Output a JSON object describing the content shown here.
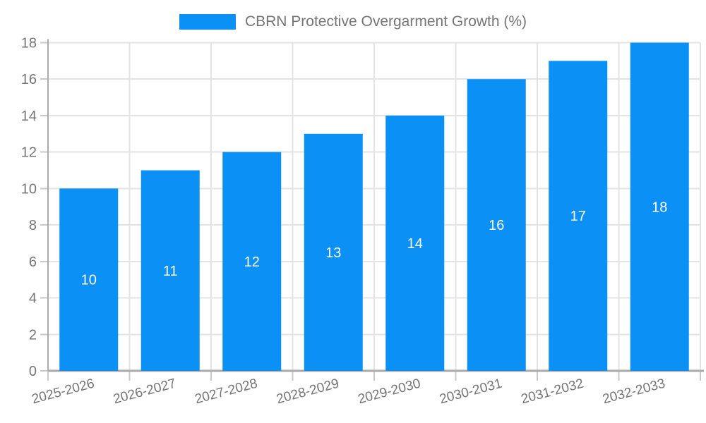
{
  "legend": {
    "label": "CBRN Protective Overgarment Growth (%)"
  },
  "chart_data": {
    "type": "bar",
    "title": "CBRN Protective Overgarment Growth (%)",
    "categories": [
      "2025-2026",
      "2026-2027",
      "2027-2028",
      "2028-2029",
      "2029-2030",
      "2030-2031",
      "2031-2032",
      "2032-2033"
    ],
    "values": [
      10,
      11,
      12,
      13,
      14,
      16,
      17,
      18
    ],
    "xlabel": "",
    "ylabel": "",
    "ylim": [
      0,
      18
    ],
    "ytick_step": 2,
    "ytick_labels": [
      "0",
      "2",
      "4",
      "6",
      "8",
      "10",
      "12",
      "14",
      "16",
      "18"
    ],
    "grid": "on",
    "legend_position": "top-center",
    "bar_color": "#0b90f5",
    "bar_label_color": "#ffffff",
    "gridline_color": "#e3e3e3",
    "axis_line_color": "#aaaaaa",
    "tick_color": "#c9c9c9",
    "tick_label_color": "#757575",
    "x_label_rotation_deg": -15
  }
}
